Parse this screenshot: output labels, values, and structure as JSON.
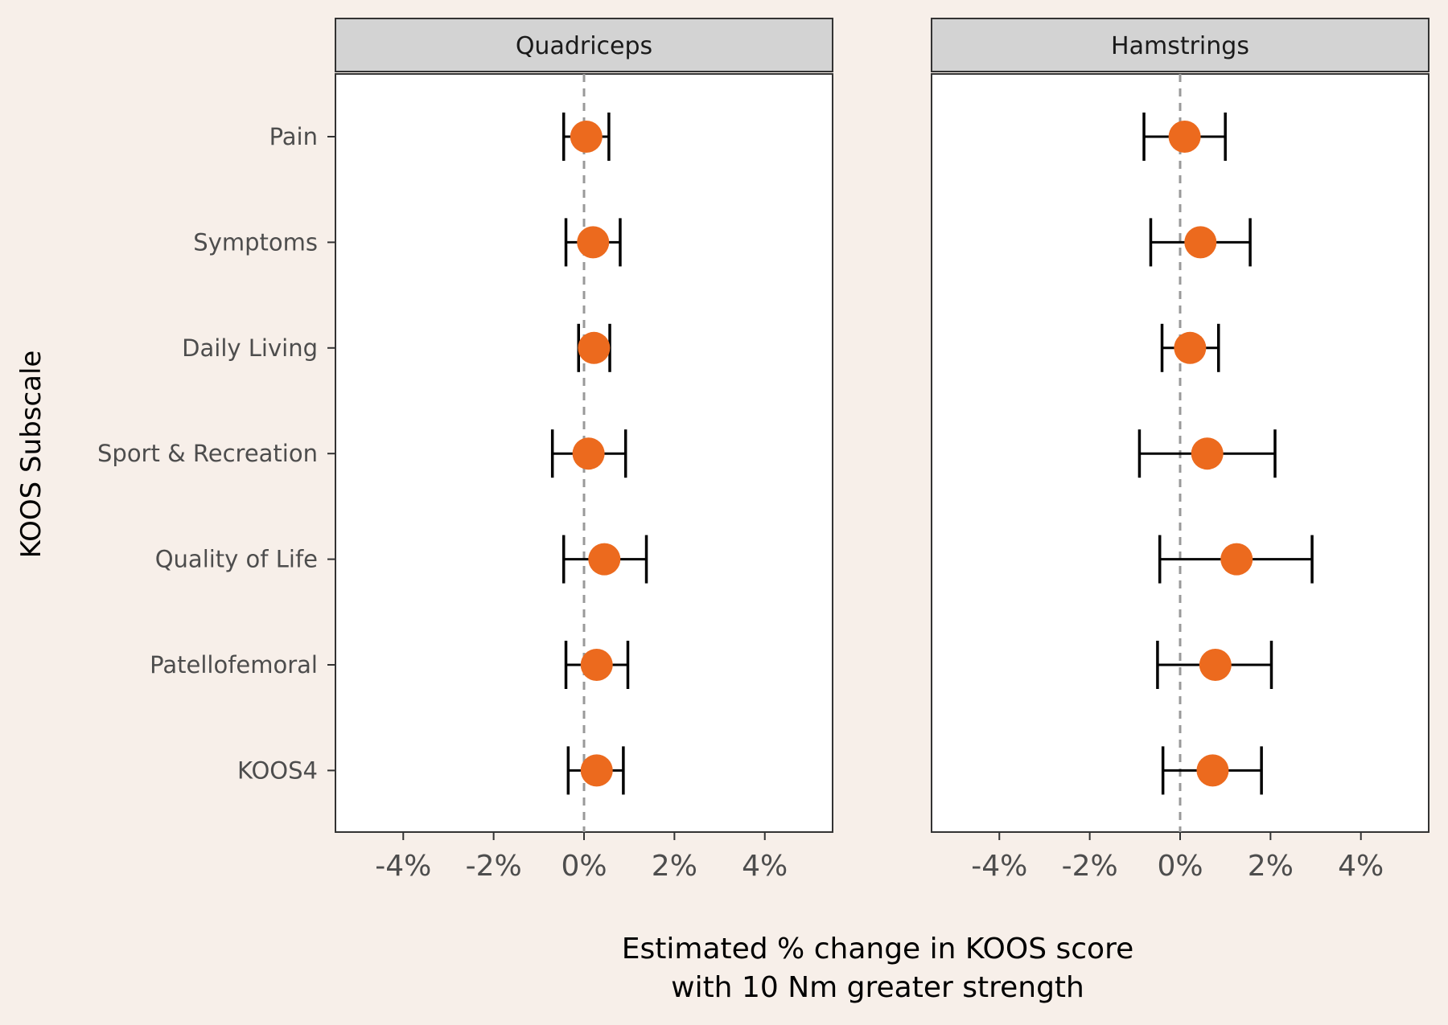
{
  "colors": {
    "background": "#f7efe9",
    "panel_background": "#ffffff",
    "strip_background": "#d3d3d3",
    "point": "#ec6a1e",
    "errorbar": "#000000",
    "zero_line": "#999999",
    "text": "#333333"
  },
  "chart_data": {
    "type": "scatter",
    "subtype": "forest-plot-faceted",
    "xlabel": "Estimated % change in KOOS score\nwith 10 Nm greater strength",
    "ylabel": "KOOS Subscale",
    "xlim": [
      -5.5,
      5.5
    ],
    "x_ticks": [
      -4,
      -2,
      0,
      2,
      4
    ],
    "x_tick_labels": [
      "-4%",
      "-2%",
      "0%",
      "2%",
      "4%"
    ],
    "reference_line": 0,
    "categories": [
      "Pain",
      "Symptoms",
      "Daily Living",
      "Sport & Recreation",
      "Quality of Life",
      "Patellofemoral",
      "KOOS4"
    ],
    "panels": [
      {
        "name": "Quadriceps",
        "estimates": [
          0.05,
          0.2,
          0.22,
          0.1,
          0.45,
          0.28,
          0.28
        ],
        "lower": [
          -0.45,
          -0.4,
          -0.12,
          -0.7,
          -0.45,
          -0.4,
          -0.35
        ],
        "upper": [
          0.55,
          0.8,
          0.57,
          0.92,
          1.38,
          0.97,
          0.87
        ]
      },
      {
        "name": "Hamstrings",
        "estimates": [
          0.1,
          0.45,
          0.22,
          0.6,
          1.25,
          0.78,
          0.72
        ],
        "lower": [
          -0.8,
          -0.65,
          -0.4,
          -0.9,
          -0.45,
          -0.5,
          -0.38
        ],
        "upper": [
          1.0,
          1.55,
          0.85,
          2.1,
          2.92,
          2.02,
          1.8
        ]
      }
    ]
  }
}
